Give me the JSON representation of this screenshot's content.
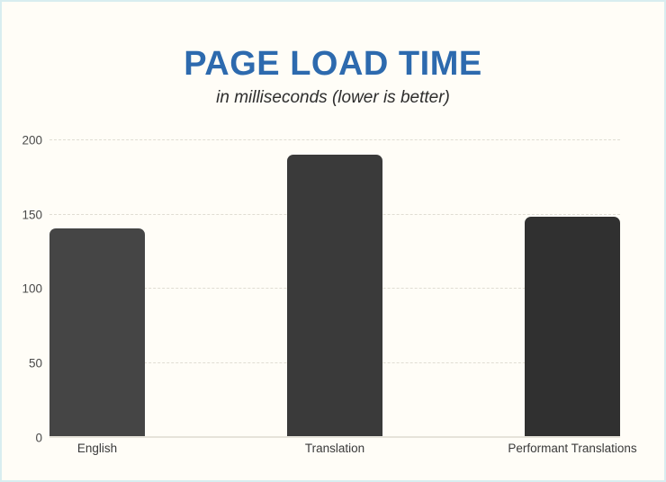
{
  "page": {
    "background_color": "#fffdf7",
    "border_color": "#d8edf0"
  },
  "header": {
    "title": "PAGE LOAD TIME",
    "subtitle": "in milliseconds (lower is better)",
    "title_color": "#2d6aae"
  },
  "chart_data": {
    "type": "bar",
    "title": "PAGE LOAD TIME",
    "subtitle": "in milliseconds (lower is better)",
    "categories": [
      "English",
      "Translation",
      "Performant Translations"
    ],
    "values": [
      140,
      190,
      148
    ],
    "bar_colors": [
      "#454545",
      "#3a3a3a",
      "#303030"
    ],
    "xlabel": "",
    "ylabel": "",
    "ylim": [
      0,
      200
    ],
    "yticks": [
      0,
      50,
      100,
      150,
      200
    ],
    "grid": "horizontal-dashed",
    "legend": "none"
  }
}
